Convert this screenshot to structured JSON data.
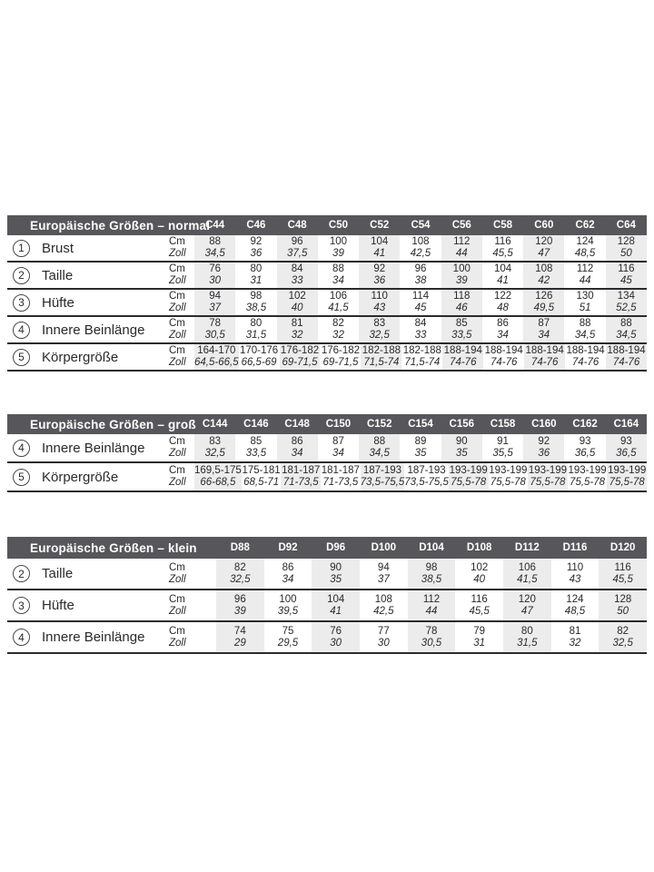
{
  "styles": {
    "header_bg": "#57565a",
    "header_text": "#ffffff",
    "column_shade": "#ececec",
    "separator_line": "#2b2a2d",
    "text_color": "#2a292c"
  },
  "tables": [
    {
      "title": "Europäische Größen – normal",
      "columns": [
        "C44",
        "C46",
        "C48",
        "C50",
        "C52",
        "C54",
        "C56",
        "C58",
        "C60",
        "C62",
        "C64"
      ],
      "unit_labels": [
        "Cm",
        "Zoll"
      ],
      "rows": [
        {
          "num": "1",
          "label": "Brust",
          "cm": [
            "88",
            "92",
            "96",
            "100",
            "104",
            "108",
            "112",
            "116",
            "120",
            "124",
            "128"
          ],
          "zoll": [
            "34,5",
            "36",
            "37,5",
            "39",
            "41",
            "42,5",
            "44",
            "45,5",
            "47",
            "48,5",
            "50"
          ]
        },
        {
          "num": "2",
          "label": "Taille",
          "cm": [
            "76",
            "80",
            "84",
            "88",
            "92",
            "96",
            "100",
            "104",
            "108",
            "112",
            "116"
          ],
          "zoll": [
            "30",
            "31",
            "33",
            "34",
            "36",
            "38",
            "39",
            "41",
            "42",
            "44",
            "45"
          ]
        },
        {
          "num": "3",
          "label": "Hüfte",
          "cm": [
            "94",
            "98",
            "102",
            "106",
            "110",
            "114",
            "118",
            "122",
            "126",
            "130",
            "134"
          ],
          "zoll": [
            "37",
            "38,5",
            "40",
            "41,5",
            "43",
            "45",
            "46",
            "48",
            "49,5",
            "51",
            "52,5"
          ]
        },
        {
          "num": "4",
          "label": "Innere Beinlänge",
          "cm": [
            "78",
            "80",
            "81",
            "82",
            "83",
            "84",
            "85",
            "86",
            "87",
            "88",
            "88"
          ],
          "zoll": [
            "30,5",
            "31,5",
            "32",
            "32",
            "32,5",
            "33",
            "33,5",
            "34",
            "34",
            "34,5",
            "34,5"
          ]
        },
        {
          "num": "5",
          "label": "Körpergröße",
          "cm": [
            "164-170",
            "170-176",
            "176-182",
            "176-182",
            "182-188",
            "182-188",
            "188-194",
            "188-194",
            "188-194",
            "188-194",
            "188-194"
          ],
          "zoll": [
            "64,5-66,5",
            "66,5-69",
            "69-71,5",
            "69-71,5",
            "71,5-74",
            "71,5-74",
            "74-76",
            "74-76",
            "74-76",
            "74-76",
            "74-76"
          ]
        }
      ]
    },
    {
      "title": "Europäische Größen – groß",
      "columns": [
        "C144",
        "C146",
        "C148",
        "C150",
        "C152",
        "C154",
        "C156",
        "C158",
        "C160",
        "C162",
        "C164"
      ],
      "unit_labels": [
        "Cm",
        "Zoll"
      ],
      "rows": [
        {
          "num": "4",
          "label": "Innere Beinlänge",
          "cm": [
            "83",
            "85",
            "86",
            "87",
            "88",
            "89",
            "90",
            "91",
            "92",
            "93",
            "93"
          ],
          "zoll": [
            "32,5",
            "33,5",
            "34",
            "34",
            "34,5",
            "35",
            "35",
            "35,5",
            "36",
            "36,5",
            "36,5"
          ]
        },
        {
          "num": "5",
          "label": "Körpergröße",
          "cm": [
            "169,5-175",
            "175-181",
            "181-187",
            "181-187",
            "187-193",
            "187-193",
            "193-199",
            "193-199",
            "193-199",
            "193-199",
            "193-199"
          ],
          "zoll": [
            "66-68,5",
            "68,5-71",
            "71-73,5",
            "71-73,5",
            "73,5-75,5",
            "73,5-75,5",
            "75,5-78",
            "75,5-78",
            "75,5-78",
            "75,5-78",
            "75,5-78"
          ]
        }
      ]
    },
    {
      "title": "Europäische Größen – klein",
      "columns": [
        "D88",
        "D92",
        "D96",
        "D100",
        "D104",
        "D108",
        "D112",
        "D116",
        "D120"
      ],
      "unit_labels": [
        "Cm",
        "Zoll"
      ],
      "rows": [
        {
          "num": "2",
          "label": "Taille",
          "cm": [
            "82",
            "86",
            "90",
            "94",
            "98",
            "102",
            "106",
            "110",
            "116"
          ],
          "zoll": [
            "32,5",
            "34",
            "35",
            "37",
            "38,5",
            "40",
            "41,5",
            "43",
            "45,5"
          ]
        },
        {
          "num": "3",
          "label": "Hüfte",
          "cm": [
            "96",
            "100",
            "104",
            "108",
            "112",
            "116",
            "120",
            "124",
            "128"
          ],
          "zoll": [
            "39",
            "39,5",
            "41",
            "42,5",
            "44",
            "45,5",
            "47",
            "48,5",
            "50"
          ]
        },
        {
          "num": "4",
          "label": "Innere Beinlänge",
          "cm": [
            "74",
            "75",
            "76",
            "77",
            "78",
            "79",
            "80",
            "81",
            "82"
          ],
          "zoll": [
            "29",
            "29,5",
            "30",
            "30",
            "30,5",
            "31",
            "31,5",
            "32",
            "32,5"
          ]
        }
      ]
    }
  ]
}
